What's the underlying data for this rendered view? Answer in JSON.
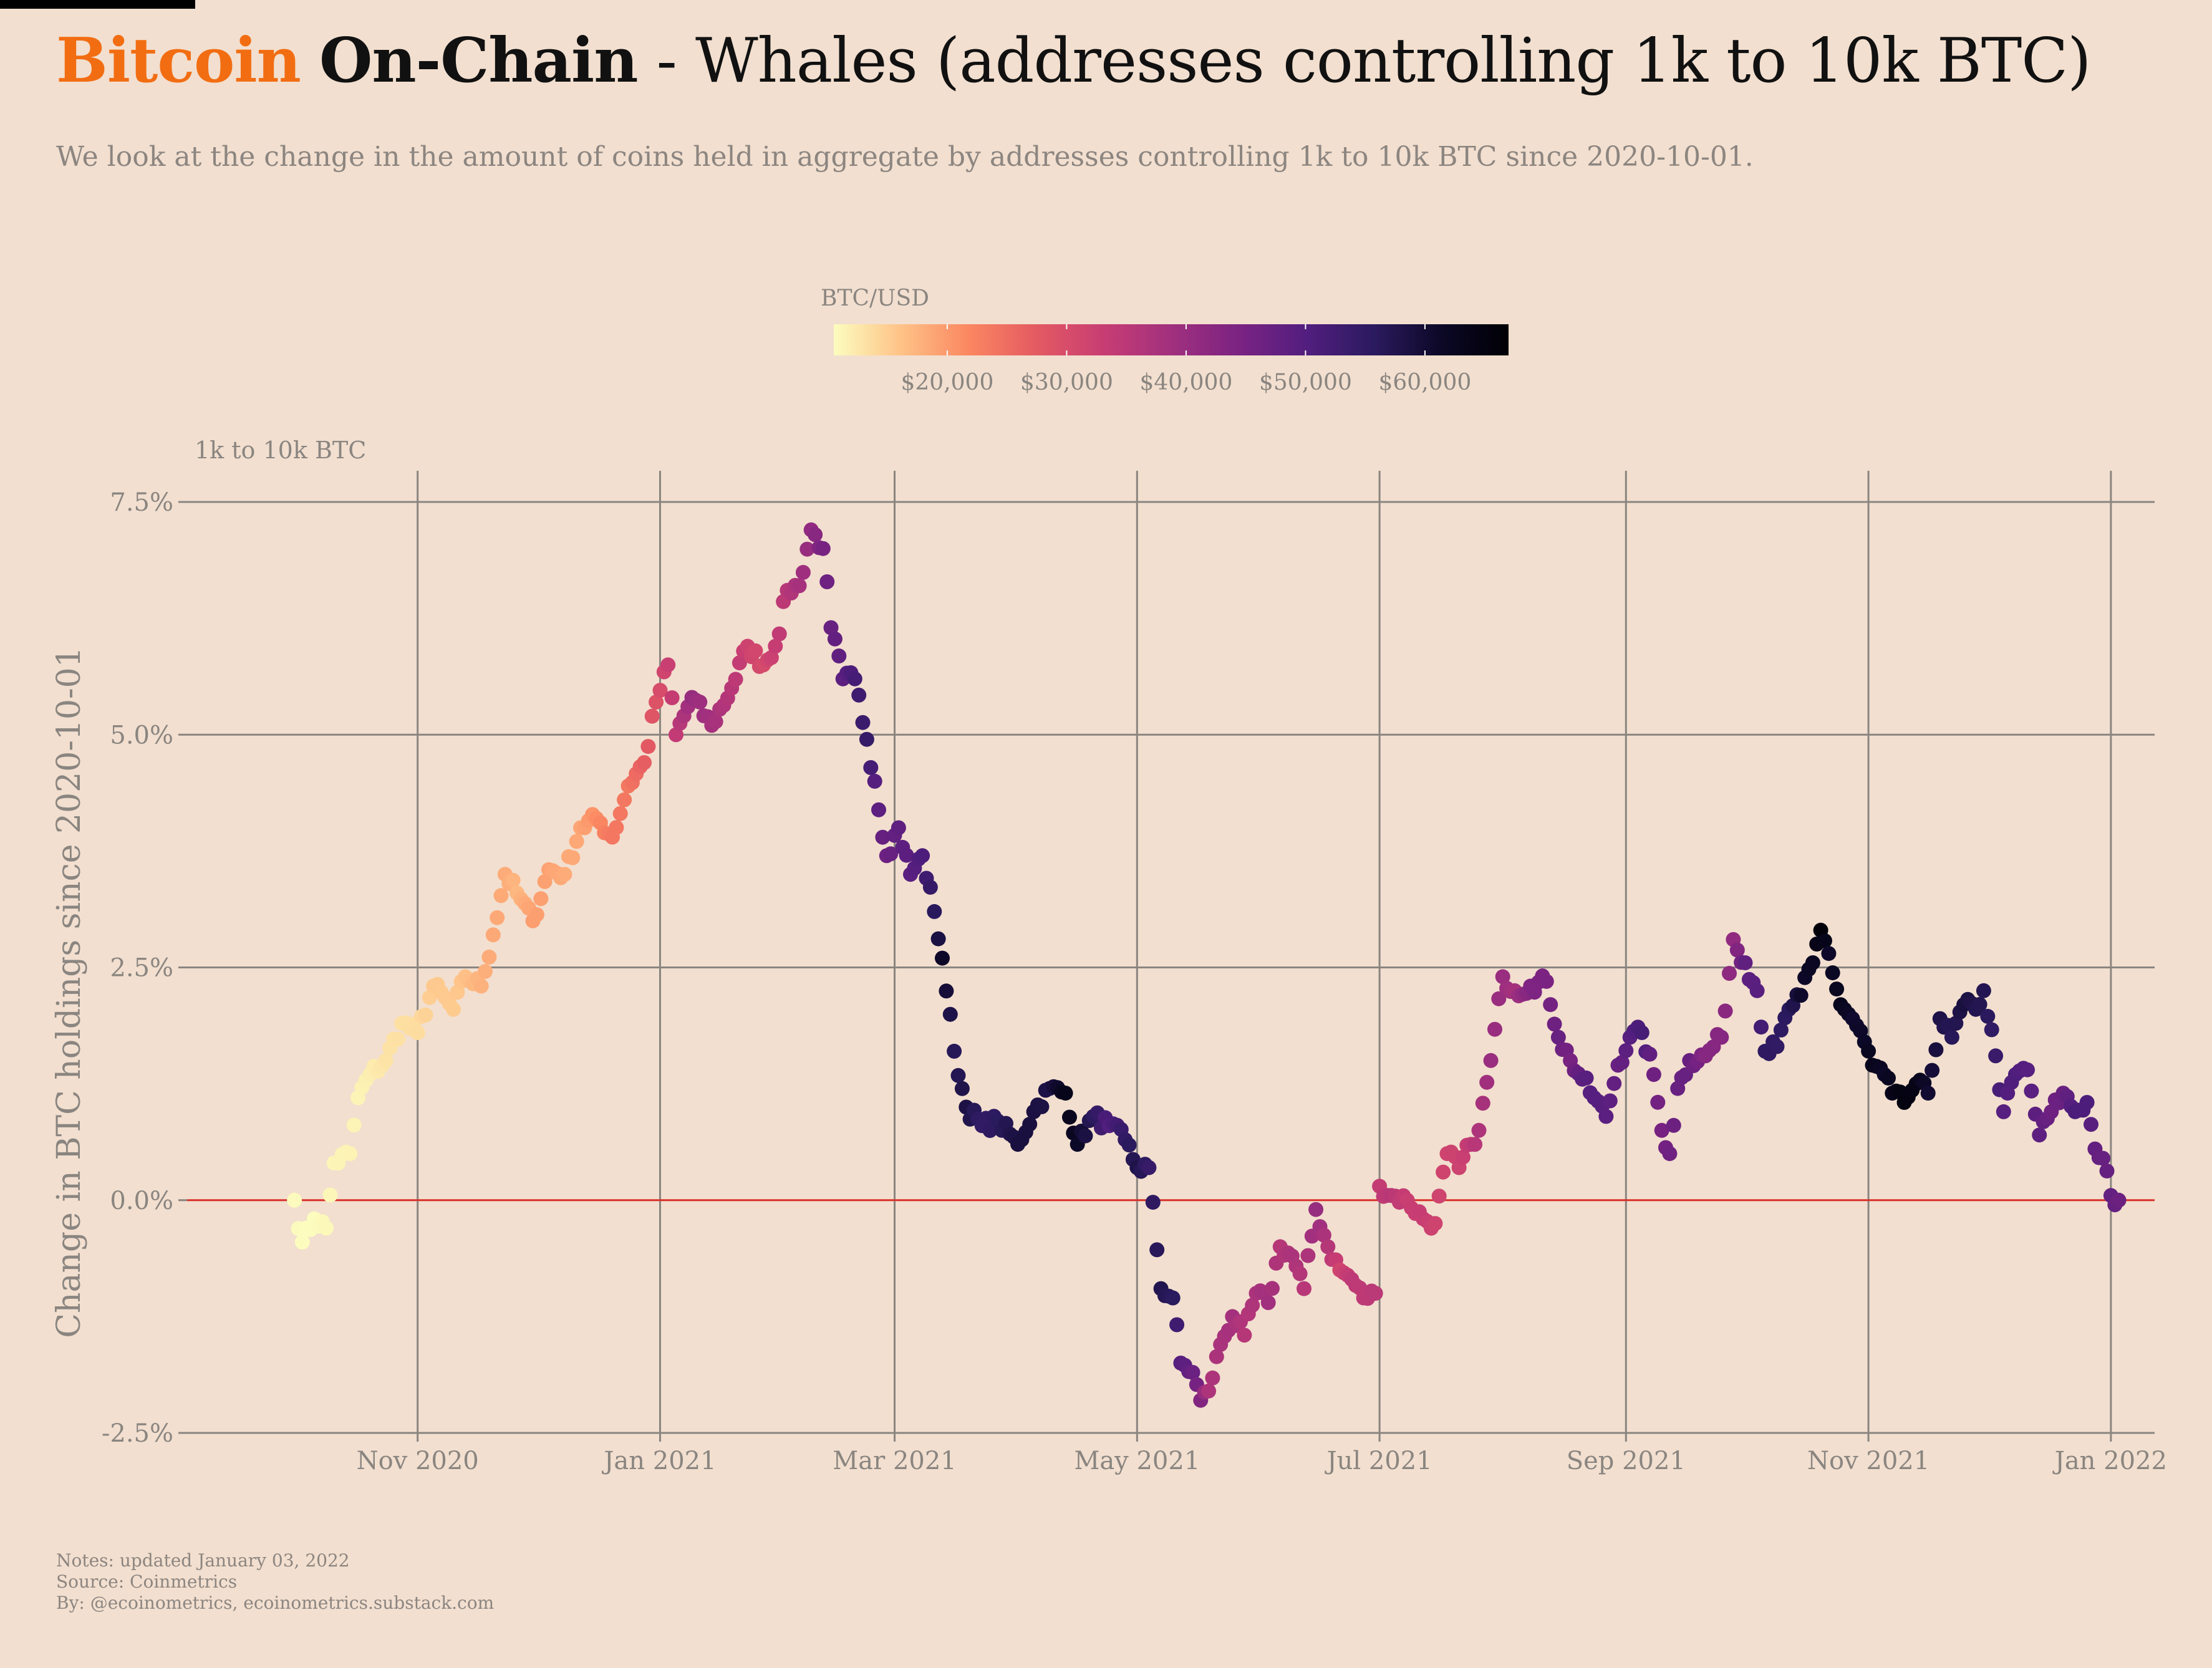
{
  "header": {
    "brand": "Bitcoin",
    "section": "On-Chain",
    "title_rest": " - Whales (addresses controlling 1k to 10k BTC)",
    "subtitle": "We look at the change in the amount of coins held in aggregate by addresses controlling 1k to 10k BTC since 2020-10-01."
  },
  "notes": {
    "line1": "Notes: updated January 03, 2022",
    "line2": "Source: Coinmetrics",
    "line3": "By: @ecoinometrics, ecoinometrics.substack.com"
  },
  "colors": {
    "background": "#f2dfcf",
    "brand": "#f26d12",
    "zero_line": "#d9302a",
    "grid": "#8a8580",
    "palette": [
      "#fcfdbf",
      "#fec287",
      "#fb8761",
      "#e45a62",
      "#c73d73",
      "#a1307e",
      "#7b2382",
      "#521e7f",
      "#2b1a5f",
      "#0c0826",
      "#000004"
    ]
  },
  "chart_data": {
    "type": "scatter",
    "title": "Whales (addresses controlling 1k to 10k BTC)",
    "ylabel": "Change in BTC holdings since 2020-10-01",
    "unit_label": "1k to 10k BTC",
    "color_label": "BTC/USD",
    "color_range": [
      10500,
      67000
    ],
    "color_ticks": [
      20000,
      30000,
      40000,
      50000,
      60000
    ],
    "color_tick_labels": [
      "$20,000",
      "$30,000",
      "$40,000",
      "$50,000",
      "$60,000"
    ],
    "ylim": [
      -2.5,
      7.5
    ],
    "yticks": [
      -2.5,
      0,
      2.5,
      5,
      7.5
    ],
    "ytick_labels": [
      "-2.5%",
      "0.0%",
      "2.5%",
      "5.0%",
      "7.5%"
    ],
    "xlim": [
      "2020-09-04",
      "2022-01-12"
    ],
    "xticks": [
      "2020-11-01",
      "2021-01-01",
      "2021-03-01",
      "2021-05-01",
      "2021-07-01",
      "2021-09-01",
      "2021-11-01",
      "2022-01-01"
    ],
    "xtick_labels": [
      "Nov 2020",
      "Jan 2021",
      "Mar 2021",
      "May 2021",
      "Jul 2021",
      "Sep 2021",
      "Nov 2021",
      "Jan 2022"
    ],
    "reference_line": 0,
    "grid": true,
    "legend_position": "top-center",
    "anchor_points": [
      {
        "date": "2020-10-01",
        "change_pct": 0.0,
        "price_usd": 10700
      },
      {
        "date": "2020-10-03",
        "change_pct": -0.45,
        "price_usd": 10600
      },
      {
        "date": "2020-10-06",
        "change_pct": -0.2,
        "price_usd": 10600
      },
      {
        "date": "2020-10-09",
        "change_pct": -0.3,
        "price_usd": 11000
      },
      {
        "date": "2020-10-11",
        "change_pct": 0.4,
        "price_usd": 11300
      },
      {
        "date": "2020-10-15",
        "change_pct": 0.5,
        "price_usd": 11500
      },
      {
        "date": "2020-10-17",
        "change_pct": 1.1,
        "price_usd": 11400
      },
      {
        "date": "2020-10-20",
        "change_pct": 1.35,
        "price_usd": 11900
      },
      {
        "date": "2020-10-24",
        "change_pct": 1.5,
        "price_usd": 13000
      },
      {
        "date": "2020-10-28",
        "change_pct": 1.9,
        "price_usd": 13300
      },
      {
        "date": "2020-11-01",
        "change_pct": 1.8,
        "price_usd": 13700
      },
      {
        "date": "2020-11-05",
        "change_pct": 2.3,
        "price_usd": 15500
      },
      {
        "date": "2020-11-10",
        "change_pct": 2.05,
        "price_usd": 15300
      },
      {
        "date": "2020-11-13",
        "change_pct": 2.4,
        "price_usd": 16300
      },
      {
        "date": "2020-11-17",
        "change_pct": 2.3,
        "price_usd": 17700
      },
      {
        "date": "2020-11-20",
        "change_pct": 2.85,
        "price_usd": 18600
      },
      {
        "date": "2020-11-23",
        "change_pct": 3.5,
        "price_usd": 18400
      },
      {
        "date": "2020-11-26",
        "change_pct": 3.3,
        "price_usd": 17100
      },
      {
        "date": "2020-11-30",
        "change_pct": 3.0,
        "price_usd": 19600
      },
      {
        "date": "2020-12-04",
        "change_pct": 3.55,
        "price_usd": 19200
      },
      {
        "date": "2020-12-08",
        "change_pct": 3.5,
        "price_usd": 18300
      },
      {
        "date": "2020-12-12",
        "change_pct": 4.0,
        "price_usd": 18800
      },
      {
        "date": "2020-12-16",
        "change_pct": 4.1,
        "price_usd": 21300
      },
      {
        "date": "2020-12-20",
        "change_pct": 3.9,
        "price_usd": 23800
      },
      {
        "date": "2020-12-24",
        "change_pct": 4.45,
        "price_usd": 23700
      },
      {
        "date": "2020-12-28",
        "change_pct": 4.7,
        "price_usd": 27000
      },
      {
        "date": "2020-12-31",
        "change_pct": 5.35,
        "price_usd": 29000
      },
      {
        "date": "2021-01-03",
        "change_pct": 5.75,
        "price_usd": 32800
      },
      {
        "date": "2021-01-05",
        "change_pct": 5.0,
        "price_usd": 33900
      },
      {
        "date": "2021-01-09",
        "change_pct": 5.4,
        "price_usd": 40200
      },
      {
        "date": "2021-01-14",
        "change_pct": 5.1,
        "price_usd": 38200
      },
      {
        "date": "2021-01-19",
        "change_pct": 5.5,
        "price_usd": 35400
      },
      {
        "date": "2021-01-23",
        "change_pct": 5.95,
        "price_usd": 32000
      },
      {
        "date": "2021-01-27",
        "change_pct": 5.75,
        "price_usd": 30400
      },
      {
        "date": "2021-01-30",
        "change_pct": 5.95,
        "price_usd": 33300
      },
      {
        "date": "2021-02-02",
        "change_pct": 6.55,
        "price_usd": 35500
      },
      {
        "date": "2021-02-05",
        "change_pct": 6.6,
        "price_usd": 38000
      },
      {
        "date": "2021-02-08",
        "change_pct": 7.2,
        "price_usd": 41200
      },
      {
        "date": "2021-02-11",
        "change_pct": 7.0,
        "price_usd": 44800
      },
      {
        "date": "2021-02-13",
        "change_pct": 6.15,
        "price_usd": 47200
      },
      {
        "date": "2021-02-16",
        "change_pct": 5.6,
        "price_usd": 48500
      },
      {
        "date": "2021-02-19",
        "change_pct": 5.6,
        "price_usd": 52000
      },
      {
        "date": "2021-02-22",
        "change_pct": 4.95,
        "price_usd": 54100
      },
      {
        "date": "2021-02-24",
        "change_pct": 4.5,
        "price_usd": 49700
      },
      {
        "date": "2021-02-27",
        "change_pct": 3.7,
        "price_usd": 46300
      },
      {
        "date": "2021-03-02",
        "change_pct": 4.0,
        "price_usd": 48400
      },
      {
        "date": "2021-03-05",
        "change_pct": 3.5,
        "price_usd": 48900
      },
      {
        "date": "2021-03-08",
        "change_pct": 3.7,
        "price_usd": 50900
      },
      {
        "date": "2021-03-11",
        "change_pct": 3.1,
        "price_usd": 56000
      },
      {
        "date": "2021-03-13",
        "change_pct": 2.6,
        "price_usd": 61200
      },
      {
        "date": "2021-03-16",
        "change_pct": 1.6,
        "price_usd": 56400
      },
      {
        "date": "2021-03-19",
        "change_pct": 1.0,
        "price_usd": 58300
      },
      {
        "date": "2021-03-23",
        "change_pct": 0.8,
        "price_usd": 54500
      },
      {
        "date": "2021-03-27",
        "change_pct": 0.85,
        "price_usd": 55800
      },
      {
        "date": "2021-04-01",
        "change_pct": 0.6,
        "price_usd": 58900
      },
      {
        "date": "2021-04-05",
        "change_pct": 0.95,
        "price_usd": 58700
      },
      {
        "date": "2021-04-09",
        "change_pct": 1.2,
        "price_usd": 58000
      },
      {
        "date": "2021-04-13",
        "change_pct": 1.15,
        "price_usd": 63500
      },
      {
        "date": "2021-04-16",
        "change_pct": 0.6,
        "price_usd": 61300
      },
      {
        "date": "2021-04-20",
        "change_pct": 0.9,
        "price_usd": 55700
      },
      {
        "date": "2021-04-24",
        "change_pct": 0.8,
        "price_usd": 50000
      },
      {
        "date": "2021-04-28",
        "change_pct": 0.65,
        "price_usd": 54800
      },
      {
        "date": "2021-05-01",
        "change_pct": 0.35,
        "price_usd": 57800
      },
      {
        "date": "2021-05-04",
        "change_pct": 0.35,
        "price_usd": 54000
      },
      {
        "date": "2021-05-07",
        "change_pct": -0.95,
        "price_usd": 57300
      },
      {
        "date": "2021-05-10",
        "change_pct": -1.05,
        "price_usd": 55800
      },
      {
        "date": "2021-05-12",
        "change_pct": -1.75,
        "price_usd": 49400
      },
      {
        "date": "2021-05-15",
        "change_pct": -1.85,
        "price_usd": 46700
      },
      {
        "date": "2021-05-17",
        "change_pct": -2.15,
        "price_usd": 43500
      },
      {
        "date": "2021-05-19",
        "change_pct": -2.05,
        "price_usd": 37000
      },
      {
        "date": "2021-05-22",
        "change_pct": -1.55,
        "price_usd": 37500
      },
      {
        "date": "2021-05-25",
        "change_pct": -1.25,
        "price_usd": 38300
      },
      {
        "date": "2021-05-28",
        "change_pct": -1.45,
        "price_usd": 35600
      },
      {
        "date": "2021-05-31",
        "change_pct": -1.0,
        "price_usd": 37300
      },
      {
        "date": "2021-06-03",
        "change_pct": -1.1,
        "price_usd": 38800
      },
      {
        "date": "2021-06-06",
        "change_pct": -0.5,
        "price_usd": 35800
      },
      {
        "date": "2021-06-09",
        "change_pct": -0.6,
        "price_usd": 37300
      },
      {
        "date": "2021-06-12",
        "change_pct": -0.95,
        "price_usd": 35500
      },
      {
        "date": "2021-06-15",
        "change_pct": -0.1,
        "price_usd": 40200
      },
      {
        "date": "2021-06-18",
        "change_pct": -0.5,
        "price_usd": 35900
      },
      {
        "date": "2021-06-21",
        "change_pct": -0.75,
        "price_usd": 31600
      },
      {
        "date": "2021-06-24",
        "change_pct": -0.85,
        "price_usd": 34600
      },
      {
        "date": "2021-06-27",
        "change_pct": -1.05,
        "price_usd": 34500
      },
      {
        "date": "2021-06-30",
        "change_pct": -1.0,
        "price_usd": 35000
      },
      {
        "date": "2021-07-01",
        "change_pct": 0.15,
        "price_usd": 33500
      },
      {
        "date": "2021-07-04",
        "change_pct": 0.05,
        "price_usd": 35300
      },
      {
        "date": "2021-07-08",
        "change_pct": 0.0,
        "price_usd": 32800
      },
      {
        "date": "2021-07-12",
        "change_pct": -0.2,
        "price_usd": 33100
      },
      {
        "date": "2021-07-15",
        "change_pct": -0.25,
        "price_usd": 31800
      },
      {
        "date": "2021-07-18",
        "change_pct": 0.5,
        "price_usd": 31800
      },
      {
        "date": "2021-07-21",
        "change_pct": 0.35,
        "price_usd": 32100
      },
      {
        "date": "2021-07-24",
        "change_pct": 0.6,
        "price_usd": 34100
      },
      {
        "date": "2021-07-26",
        "change_pct": 0.75,
        "price_usd": 37000
      },
      {
        "date": "2021-07-29",
        "change_pct": 1.5,
        "price_usd": 39900
      },
      {
        "date": "2021-08-01",
        "change_pct": 2.4,
        "price_usd": 39900
      },
      {
        "date": "2021-08-04",
        "change_pct": 2.25,
        "price_usd": 38200
      },
      {
        "date": "2021-08-08",
        "change_pct": 2.3,
        "price_usd": 43800
      },
      {
        "date": "2021-08-12",
        "change_pct": 2.35,
        "price_usd": 44400
      },
      {
        "date": "2021-08-15",
        "change_pct": 1.75,
        "price_usd": 47100
      },
      {
        "date": "2021-08-18",
        "change_pct": 1.5,
        "price_usd": 44800
      },
      {
        "date": "2021-08-21",
        "change_pct": 1.3,
        "price_usd": 48900
      },
      {
        "date": "2021-08-24",
        "change_pct": 1.1,
        "price_usd": 49600
      },
      {
        "date": "2021-08-27",
        "change_pct": 0.9,
        "price_usd": 49000
      },
      {
        "date": "2021-08-30",
        "change_pct": 1.45,
        "price_usd": 47000
      },
      {
        "date": "2021-09-02",
        "change_pct": 1.75,
        "price_usd": 49300
      },
      {
        "date": "2021-09-05",
        "change_pct": 1.8,
        "price_usd": 51700
      },
      {
        "date": "2021-09-08",
        "change_pct": 1.35,
        "price_usd": 46100
      },
      {
        "date": "2021-09-10",
        "change_pct": 0.75,
        "price_usd": 45000
      },
      {
        "date": "2021-09-12",
        "change_pct": 0.5,
        "price_usd": 46000
      },
      {
        "date": "2021-09-14",
        "change_pct": 1.2,
        "price_usd": 47000
      },
      {
        "date": "2021-09-17",
        "change_pct": 1.5,
        "price_usd": 47300
      },
      {
        "date": "2021-09-21",
        "change_pct": 1.55,
        "price_usd": 42800
      },
      {
        "date": "2021-09-25",
        "change_pct": 1.75,
        "price_usd": 42700
      },
      {
        "date": "2021-09-28",
        "change_pct": 2.8,
        "price_usd": 41000
      },
      {
        "date": "2021-10-01",
        "change_pct": 2.55,
        "price_usd": 48100
      },
      {
        "date": "2021-10-04",
        "change_pct": 2.25,
        "price_usd": 49200
      },
      {
        "date": "2021-10-06",
        "change_pct": 1.6,
        "price_usd": 55300
      },
      {
        "date": "2021-10-09",
        "change_pct": 1.65,
        "price_usd": 54900
      },
      {
        "date": "2021-10-12",
        "change_pct": 2.05,
        "price_usd": 56000
      },
      {
        "date": "2021-10-15",
        "change_pct": 2.2,
        "price_usd": 60800
      },
      {
        "date": "2021-10-18",
        "change_pct": 2.55,
        "price_usd": 62000
      },
      {
        "date": "2021-10-20",
        "change_pct": 2.9,
        "price_usd": 66000
      },
      {
        "date": "2021-10-22",
        "change_pct": 2.65,
        "price_usd": 61000
      },
      {
        "date": "2021-10-25",
        "change_pct": 2.1,
        "price_usd": 63000
      },
      {
        "date": "2021-10-28",
        "change_pct": 1.95,
        "price_usd": 60600
      },
      {
        "date": "2021-10-31",
        "change_pct": 1.7,
        "price_usd": 61300
      },
      {
        "date": "2021-11-02",
        "change_pct": 1.45,
        "price_usd": 63200
      },
      {
        "date": "2021-11-05",
        "change_pct": 1.35,
        "price_usd": 61400
      },
      {
        "date": "2021-11-07",
        "change_pct": 1.15,
        "price_usd": 63300
      },
      {
        "date": "2021-11-10",
        "change_pct": 1.05,
        "price_usd": 65000
      },
      {
        "date": "2021-11-13",
        "change_pct": 1.25,
        "price_usd": 64100
      },
      {
        "date": "2021-11-16",
        "change_pct": 1.15,
        "price_usd": 60300
      },
      {
        "date": "2021-11-19",
        "change_pct": 1.95,
        "price_usd": 58100
      },
      {
        "date": "2021-11-22",
        "change_pct": 1.75,
        "price_usd": 56300
      },
      {
        "date": "2021-11-25",
        "change_pct": 2.1,
        "price_usd": 58900
      },
      {
        "date": "2021-11-28",
        "change_pct": 2.05,
        "price_usd": 57200
      },
      {
        "date": "2021-11-30",
        "change_pct": 2.25,
        "price_usd": 57000
      },
      {
        "date": "2021-12-03",
        "change_pct": 1.55,
        "price_usd": 53700
      },
      {
        "date": "2021-12-05",
        "change_pct": 0.95,
        "price_usd": 49400
      },
      {
        "date": "2021-12-08",
        "change_pct": 1.35,
        "price_usd": 50600
      },
      {
        "date": "2021-12-11",
        "change_pct": 1.4,
        "price_usd": 49300
      },
      {
        "date": "2021-12-14",
        "change_pct": 0.7,
        "price_usd": 48400
      },
      {
        "date": "2021-12-17",
        "change_pct": 0.95,
        "price_usd": 46200
      },
      {
        "date": "2021-12-20",
        "change_pct": 1.15,
        "price_usd": 46900
      },
      {
        "date": "2021-12-23",
        "change_pct": 0.95,
        "price_usd": 51000
      },
      {
        "date": "2021-12-26",
        "change_pct": 1.05,
        "price_usd": 50800
      },
      {
        "date": "2021-12-28",
        "change_pct": 0.55,
        "price_usd": 47600
      },
      {
        "date": "2021-12-30",
        "change_pct": 0.45,
        "price_usd": 47100
      },
      {
        "date": "2022-01-01",
        "change_pct": 0.05,
        "price_usd": 47700
      },
      {
        "date": "2022-01-02",
        "change_pct": -0.05,
        "price_usd": 47300
      },
      {
        "date": "2022-01-03",
        "change_pct": 0.0,
        "price_usd": 46400
      }
    ]
  }
}
